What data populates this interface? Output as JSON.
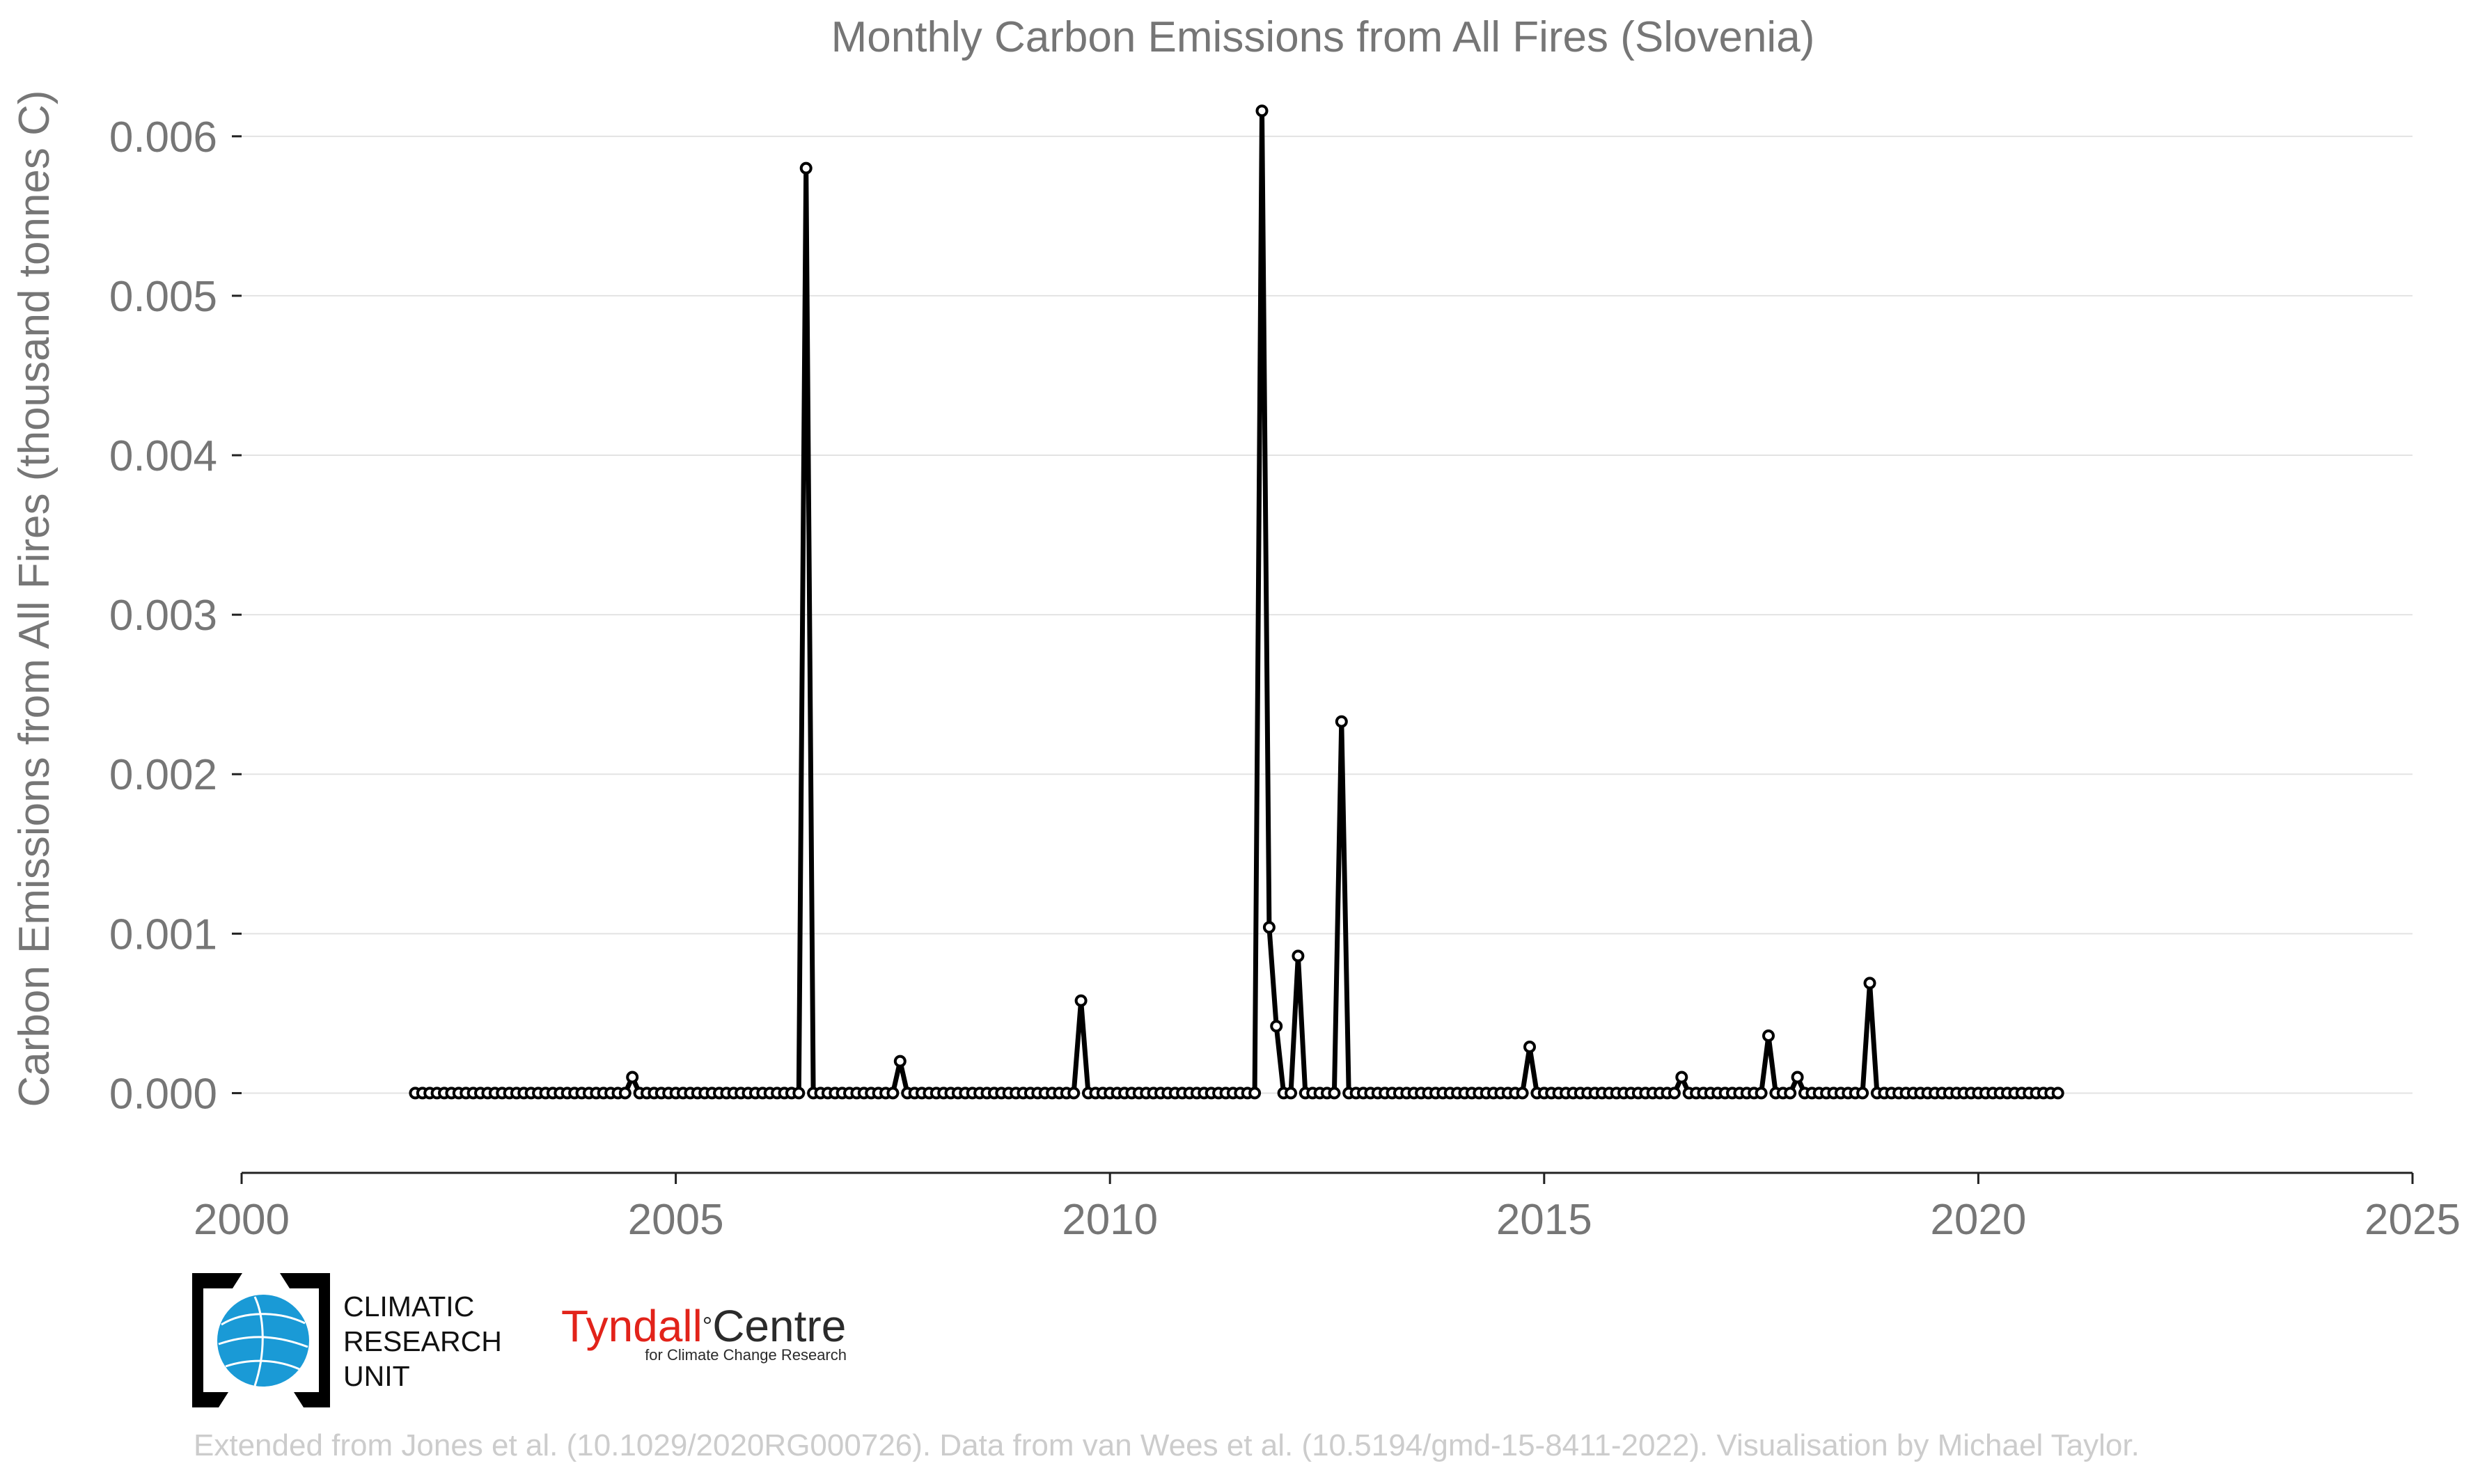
{
  "chart_data": {
    "type": "line",
    "title": "Monthly Carbon Emissions from All Fires (Slovenia)",
    "xlabel": "",
    "ylabel": "Carbon Emissions from All Fires (thousand tonnes C)",
    "xlim": [
      2000,
      2025
    ],
    "ylim": [
      -0.0005,
      0.0062
    ],
    "xticks": [
      "2000",
      "2005",
      "2010",
      "2015",
      "2020",
      "2025"
    ],
    "yticks": [
      "0.000",
      "0.001",
      "0.002",
      "0.003",
      "0.004",
      "0.005",
      "0.006"
    ],
    "grid": "horizontal",
    "start": "2002-01",
    "monthly_values": [
      0,
      0,
      0,
      0,
      0,
      0,
      0,
      0,
      0,
      0,
      0,
      0,
      0,
      0,
      0,
      0,
      0,
      0,
      0,
      0,
      0,
      0,
      0,
      0,
      0,
      0,
      0,
      0,
      0,
      0,
      0.0001,
      0,
      0,
      0,
      0,
      0,
      0,
      0,
      0,
      0,
      0,
      0,
      0,
      0,
      0,
      0,
      0,
      0,
      0,
      0,
      0,
      0,
      0,
      0,
      0.0058,
      0,
      0,
      0,
      0,
      0,
      0,
      0,
      0,
      0,
      0,
      0,
      0,
      0.0002,
      0,
      0,
      0,
      0,
      0,
      0,
      0,
      0,
      0,
      0,
      0,
      0,
      0,
      0,
      0,
      0,
      0,
      0,
      0,
      0,
      0,
      0,
      0,
      0,
      0.00058,
      0,
      0,
      0,
      0,
      0,
      0,
      0,
      0,
      0,
      0,
      0,
      0,
      0,
      0,
      0,
      0,
      0,
      0,
      0,
      0,
      0,
      0,
      0,
      0,
      0.00616,
      0.00104,
      0.00042,
      0,
      0,
      0.00086,
      0,
      0,
      0,
      0,
      0,
      0.00233,
      0,
      0,
      0,
      0,
      0,
      0,
      0,
      0,
      0,
      0,
      0,
      0,
      0,
      0,
      0,
      0,
      0,
      0,
      0,
      0,
      0,
      0,
      0,
      0,
      0,
      0.00029,
      0,
      0,
      0,
      0,
      0,
      0,
      0,
      0,
      0,
      0,
      0,
      0,
      0,
      0,
      0,
      0,
      0,
      0,
      0,
      0,
      0.0001,
      0,
      0,
      0,
      0,
      0,
      0,
      0,
      0,
      0,
      0,
      0,
      0.00036,
      0,
      0,
      0,
      0.0001,
      0,
      0,
      0,
      0,
      0,
      0,
      0,
      0,
      0,
      0.00069,
      0,
      0,
      0,
      0,
      0,
      0,
      0,
      0,
      0,
      0,
      0,
      0,
      0,
      0,
      0,
      0,
      0,
      0,
      0,
      0,
      0,
      0,
      0,
      0,
      0,
      0
    ]
  },
  "logos": {
    "cru_lines": [
      "CLIMATIC",
      "RESEARCH",
      "UNIT"
    ],
    "tyndall_word1": "Tyndall",
    "tyndall_degree": "°",
    "tyndall_word2": "Centre",
    "tyndall_sub": "for Climate Change Research",
    "cru_blue": "#1a9ad6"
  },
  "credit": "Extended from Jones et al. (10.1029/2020RG000726). Data from van Wees et al. (10.5194/gmd-15-8411-2022). Visualisation by Michael Taylor."
}
